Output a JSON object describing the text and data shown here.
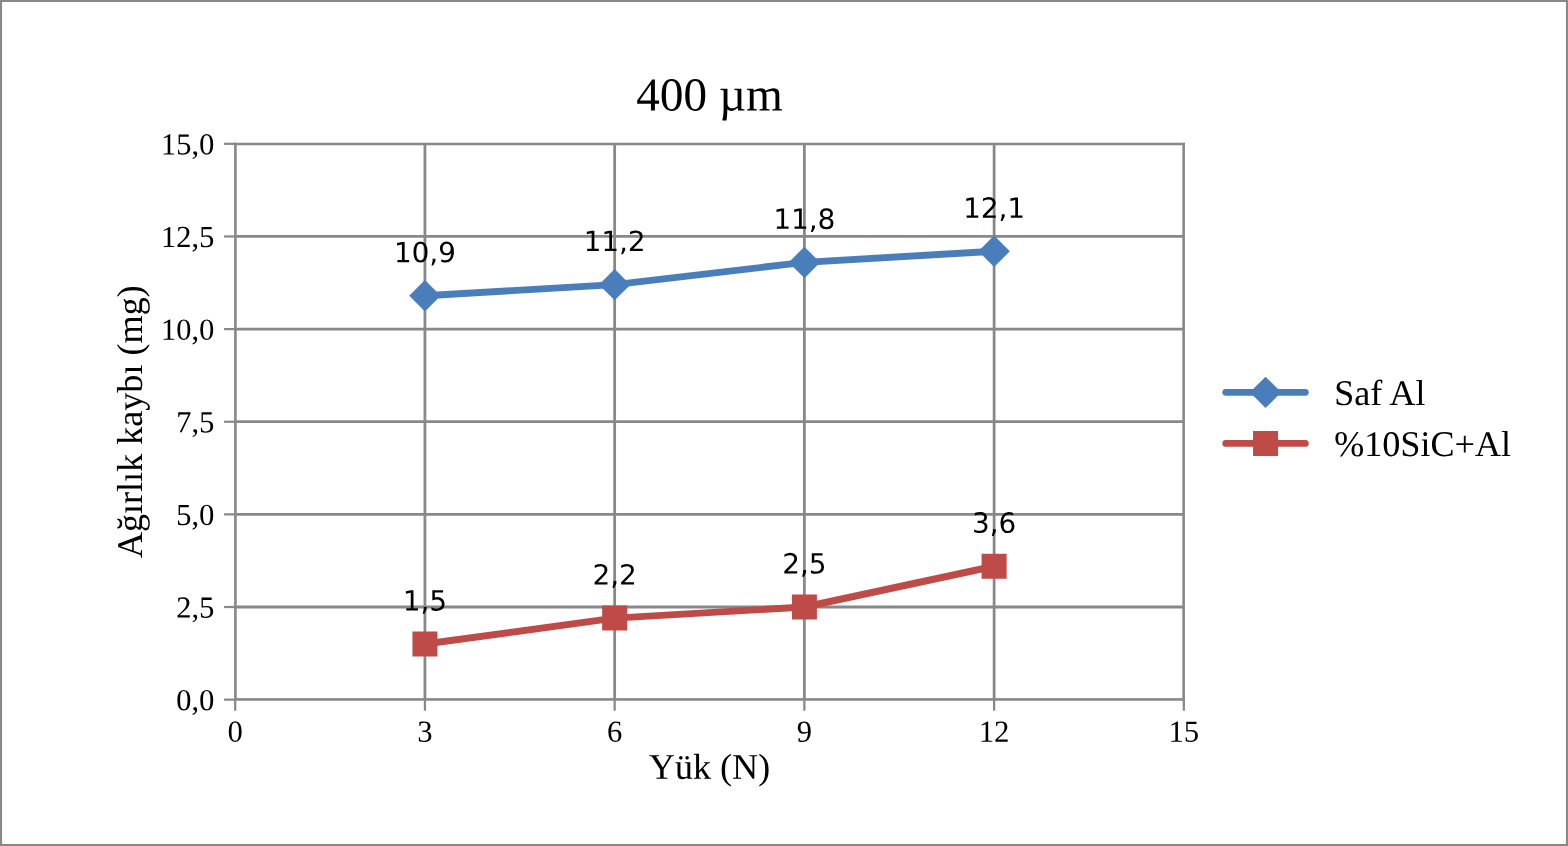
{
  "chart_data": {
    "type": "line",
    "title": "400 µm",
    "xlabel": "Yük (N)",
    "ylabel": "Ağırlık kaybı (mg)",
    "x": [
      3,
      6,
      9,
      12
    ],
    "series": [
      {
        "name": "Saf Al",
        "color": "#4a7ebb",
        "marker": "diamond",
        "values": [
          10.9,
          11.2,
          11.8,
          12.1
        ],
        "value_labels": [
          "10,9",
          "11,2",
          "11,8",
          "12,1"
        ]
      },
      {
        "name": "%10SiC+Al",
        "color": "#be4b48",
        "marker": "square",
        "values": [
          1.5,
          2.2,
          2.5,
          3.6
        ],
        "value_labels": [
          "1,5",
          "2,2",
          "2,5",
          "3,6"
        ]
      }
    ],
    "xlim": [
      0,
      15
    ],
    "xticks": [
      0,
      3,
      6,
      9,
      12,
      15
    ],
    "ylim": [
      0,
      15
    ],
    "yticks": [
      {
        "value": 0,
        "label": "0,0"
      },
      {
        "value": 2.5,
        "label": "2,5"
      },
      {
        "value": 5,
        "label": "5,0"
      },
      {
        "value": 7.5,
        "label": "7,5"
      },
      {
        "value": 10,
        "label": "10,0"
      },
      {
        "value": 12.5,
        "label": "12,5"
      },
      {
        "value": 15,
        "label": "15,0"
      }
    ],
    "grid": true,
    "legend": "right",
    "line_style": "solid"
  }
}
